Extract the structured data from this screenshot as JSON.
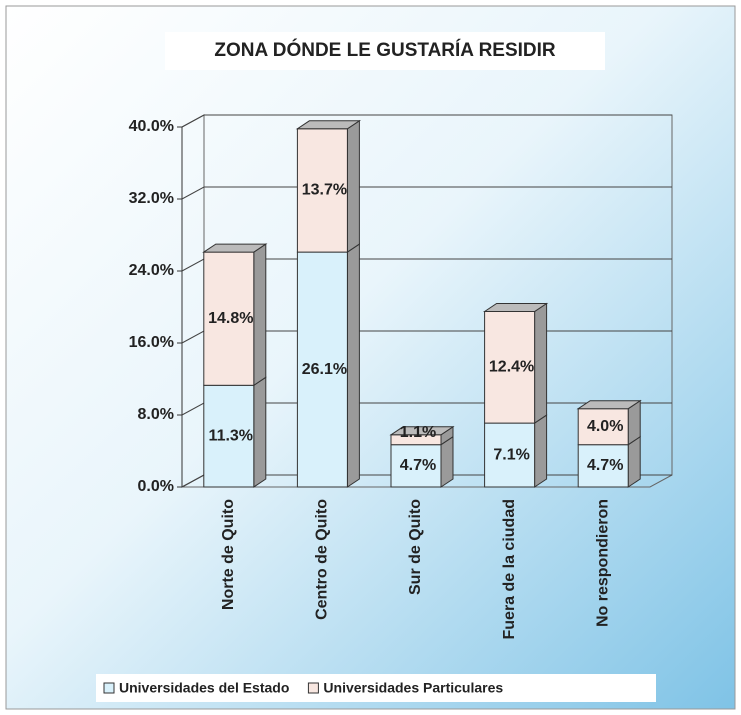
{
  "chart_data": {
    "type": "bar",
    "stacked": true,
    "title": "ZONA DÓNDE LE GUSTARÍA RESIDIR",
    "categories": [
      "Norte de Quito",
      "Centro de Quito",
      "Sur de Quito",
      "Fuera de la ciudad",
      "No respondieron"
    ],
    "series": [
      {
        "name": "Universidades del Estado",
        "color": "#d9f1fb",
        "values": [
          11.3,
          26.1,
          4.7,
          7.1,
          4.7
        ],
        "value_labels": [
          "11.3%",
          "26.1%",
          "4.7%",
          "7.1%",
          "4.7%"
        ]
      },
      {
        "name": "Universidades Particulares",
        "color": "#f8e7e1",
        "values": [
          14.8,
          13.7,
          1.1,
          12.4,
          4.0
        ],
        "value_labels": [
          "14.8%",
          "13.7%",
          "1.1%",
          "12.4%",
          "4.0%"
        ]
      }
    ],
    "ylim": [
      0,
      40
    ],
    "yticks": [
      {
        "value": 0,
        "label": "0.0%"
      },
      {
        "value": 8,
        "label": "8.0%"
      },
      {
        "value": 16,
        "label": "16.0%"
      },
      {
        "value": 24,
        "label": "24.0%"
      },
      {
        "value": 32,
        "label": "32.0%"
      },
      {
        "value": 40,
        "label": "40.0%"
      }
    ],
    "grid": true,
    "legend": "bottom"
  }
}
